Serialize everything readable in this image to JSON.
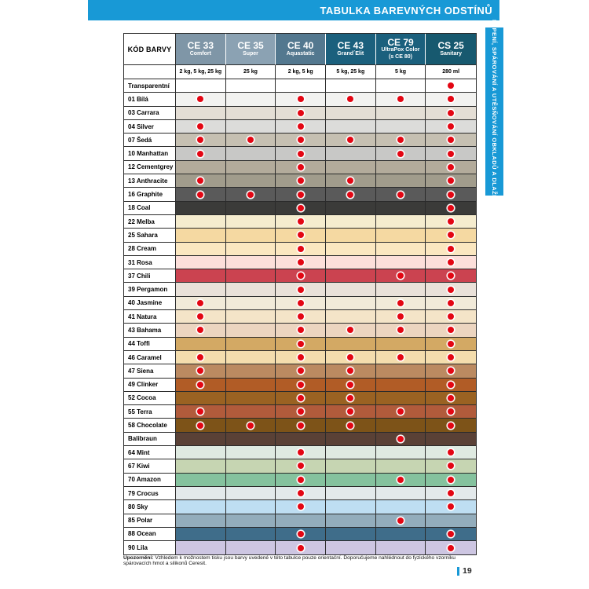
{
  "page": {
    "title_bar": "TABULKA BAREVNÝCH ODSTÍNŮ",
    "side_tab": "LEPENÍ, SPÁROVÁNÍ A UTĚSŇOVÁNÍ OBKLADŮ A DLAŽBY",
    "footnote_label": "Upozornění:",
    "footnote_text": "Vzhledem k možnostem tisku jsou barvy uvedené v této tabulce pouze orientační. Doporučujeme nahlédnout do fyzického vzorníku spárovacích hmot a silikonů Ceresit.",
    "page_number": "19",
    "brand_blue": "#1899d6",
    "dot_red": "#e30613"
  },
  "table": {
    "code_header": "KÓD BARVY",
    "products": [
      {
        "code": "CE 33",
        "name": "Comfort",
        "pack": "2 kg, 5 kg, 25 kg",
        "bg": "#7f96a7"
      },
      {
        "code": "CE 35",
        "name": "Super",
        "pack": "25 kg",
        "bg": "#8ba2b3"
      },
      {
        "code": "CE 40",
        "name": "Aquastatic",
        "pack": "2 kg, 5 kg",
        "bg": "#53788f"
      },
      {
        "code": "CE 43",
        "name": "Grand´Elit",
        "pack": "5 kg, 25 kg",
        "bg": "#1b607d"
      },
      {
        "code": "CE 79",
        "name": "UltraPox Color",
        "name2": "(s CE 80)",
        "pack": "5 kg",
        "bg": "#1b607d"
      },
      {
        "code": "CS 25",
        "name": "Sanitary",
        "pack": "280 ml",
        "bg": "#17596f"
      }
    ],
    "rows": [
      {
        "label": "Transparentní",
        "color": "#ffffff",
        "dots": [
          0,
          0,
          0,
          0,
          0,
          1
        ]
      },
      {
        "label": "01 Bílá",
        "color": "#f2f2f0",
        "dots": [
          1,
          0,
          1,
          1,
          1,
          1
        ]
      },
      {
        "label": "03 Carrara",
        "color": "#e4ded5",
        "dots": [
          0,
          0,
          1,
          0,
          0,
          1
        ]
      },
      {
        "label": "04 Silver",
        "color": "#dcdcda",
        "dots": [
          1,
          0,
          1,
          0,
          0,
          1
        ]
      },
      {
        "label": "07 Šedá",
        "color": "#c6c0b2",
        "dots": [
          1,
          1,
          1,
          1,
          1,
          1
        ]
      },
      {
        "label": "10 Manhattan",
        "color": "#c8c8c6",
        "dots": [
          1,
          0,
          1,
          0,
          1,
          1
        ]
      },
      {
        "label": "12 Cementgrey",
        "color": "#b3ab9b",
        "dots": [
          0,
          0,
          1,
          0,
          0,
          1
        ]
      },
      {
        "label": "13 Anthracite",
        "color": "#a19c8c",
        "dots": [
          1,
          0,
          1,
          1,
          0,
          1
        ]
      },
      {
        "label": "16 Graphite",
        "color": "#5a5a5a",
        "dots": [
          1,
          1,
          1,
          1,
          1,
          1
        ]
      },
      {
        "label": "18 Coal",
        "color": "#3b3b39",
        "dots": [
          0,
          0,
          1,
          0,
          0,
          1
        ]
      },
      {
        "label": "22 Melba",
        "color": "#f5ecce",
        "dots": [
          0,
          0,
          1,
          0,
          0,
          1
        ]
      },
      {
        "label": "25 Sahara",
        "color": "#f5d9a2",
        "dots": [
          0,
          0,
          1,
          0,
          0,
          1
        ]
      },
      {
        "label": "28 Cream",
        "color": "#fbe7c0",
        "dots": [
          0,
          0,
          1,
          0,
          0,
          1
        ]
      },
      {
        "label": "31 Rosa",
        "color": "#fcdfda",
        "dots": [
          0,
          0,
          1,
          0,
          0,
          1
        ]
      },
      {
        "label": "37 Chili",
        "color": "#cb4350",
        "dots": [
          0,
          0,
          1,
          0,
          1,
          1
        ]
      },
      {
        "label": "39 Pergamon",
        "color": "#e9e1d9",
        "dots": [
          0,
          0,
          1,
          0,
          0,
          1
        ]
      },
      {
        "label": "40 Jasmine",
        "color": "#f1ead9",
        "dots": [
          1,
          0,
          1,
          0,
          1,
          1
        ]
      },
      {
        "label": "41 Natura",
        "color": "#f4e4c8",
        "dots": [
          1,
          0,
          1,
          0,
          1,
          1
        ]
      },
      {
        "label": "43 Bahama",
        "color": "#ecd5c0",
        "dots": [
          1,
          0,
          1,
          1,
          1,
          1
        ]
      },
      {
        "label": "44 Toffi",
        "color": "#d3a964",
        "dots": [
          0,
          0,
          1,
          0,
          0,
          1
        ]
      },
      {
        "label": "46 Caramel",
        "color": "#f4ddad",
        "dots": [
          1,
          0,
          1,
          1,
          1,
          1
        ]
      },
      {
        "label": "47 Siena",
        "color": "#bb8a61",
        "dots": [
          1,
          0,
          1,
          1,
          0,
          1
        ]
      },
      {
        "label": "49 Clinker",
        "color": "#b15c26",
        "dots": [
          1,
          0,
          1,
          1,
          0,
          1
        ]
      },
      {
        "label": "52 Cocoa",
        "color": "#9a6222",
        "dots": [
          0,
          0,
          1,
          1,
          0,
          1
        ]
      },
      {
        "label": "55 Terra",
        "color": "#b15b3b",
        "dots": [
          1,
          0,
          1,
          1,
          1,
          1
        ]
      },
      {
        "label": "58 Chocolate",
        "color": "#7d5318",
        "dots": [
          1,
          1,
          1,
          1,
          0,
          1
        ]
      },
      {
        "label": "Balibraun",
        "color": "#5a4136",
        "dots": [
          0,
          0,
          0,
          0,
          1,
          0
        ]
      },
      {
        "label": "64 Mint",
        "color": "#dfeae1",
        "dots": [
          0,
          0,
          1,
          0,
          0,
          1
        ]
      },
      {
        "label": "67 Kiwi",
        "color": "#c6d5b2",
        "dots": [
          0,
          0,
          1,
          0,
          0,
          1
        ]
      },
      {
        "label": "70 Amazon",
        "color": "#85c29e",
        "dots": [
          0,
          0,
          1,
          0,
          1,
          1
        ]
      },
      {
        "label": "79 Crocus",
        "color": "#e3e9eb",
        "dots": [
          0,
          0,
          1,
          0,
          0,
          1
        ]
      },
      {
        "label": "80 Sky",
        "color": "#bedef2",
        "dots": [
          0,
          0,
          1,
          0,
          0,
          1
        ]
      },
      {
        "label": "85 Polar",
        "color": "#93adbc",
        "dots": [
          0,
          0,
          0,
          0,
          1,
          0
        ]
      },
      {
        "label": "88 Ocean",
        "color": "#3f6d8a",
        "dots": [
          0,
          0,
          1,
          0,
          0,
          1
        ]
      },
      {
        "label": "90 Lila",
        "color": "#cdc6e2",
        "dots": [
          0,
          0,
          1,
          0,
          0,
          1
        ]
      }
    ]
  }
}
